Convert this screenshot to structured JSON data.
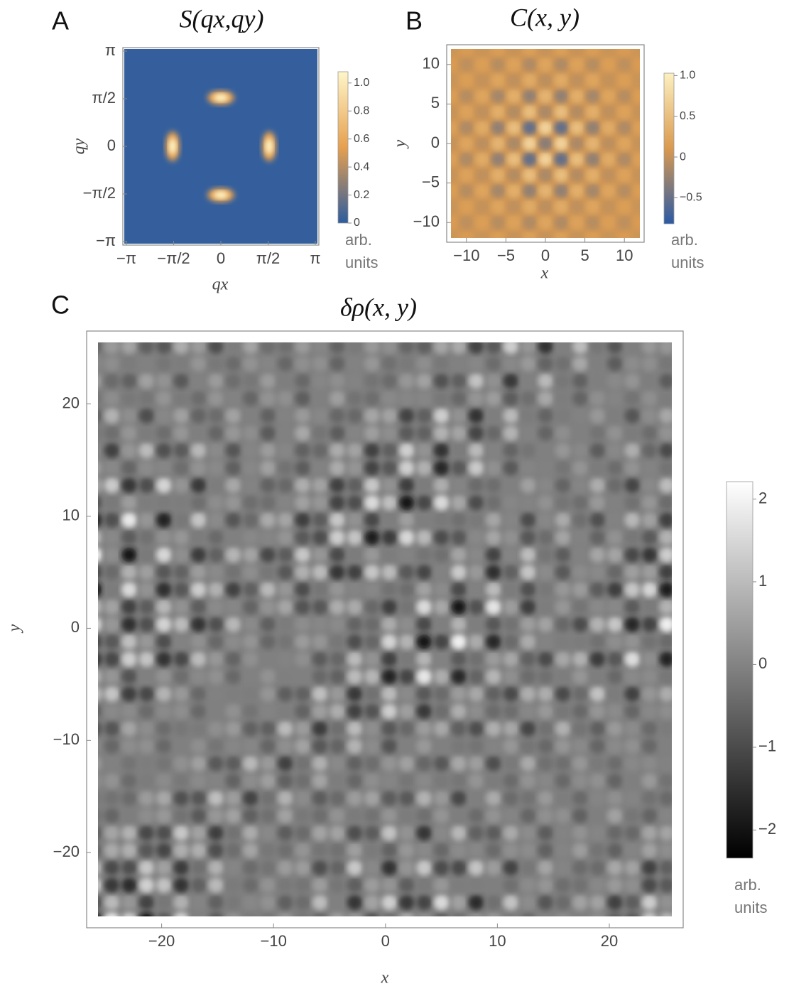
{
  "chart_data": [
    {
      "type": "heatmap",
      "panel": "A",
      "title": "S(qx,qy)",
      "xlabel": "qx",
      "ylabel": "qy",
      "xlim": [
        -3.14159,
        3.14159
      ],
      "ylim": [
        -3.14159,
        3.14159
      ],
      "xticks": [
        {
          "value": -3.14159,
          "label": "−π"
        },
        {
          "value": -1.5708,
          "label": "−π/2"
        },
        0,
        {
          "value": 1.5708,
          "label": "π/2"
        },
        {
          "value": 3.14159,
          "label": "π"
        }
      ],
      "yticks": [
        {
          "value": -3.14159,
          "label": "−π"
        },
        {
          "value": -1.5708,
          "label": "−π/2"
        },
        0,
        {
          "value": 1.5708,
          "label": "π/2"
        },
        {
          "value": 3.14159,
          "label": "π"
        }
      ],
      "colorbar": {
        "lim": [
          0,
          1.08
        ],
        "ticks": [
          0,
          0.2,
          0.4,
          0.6,
          0.8,
          {
            "value": 1,
            "label": "1.0"
          }
        ],
        "label": "arb. units",
        "colors": [
          "#2d5c9f",
          "#e6a04f",
          "#fff6c9"
        ]
      }
    },
    {
      "type": "heatmap",
      "panel": "B",
      "title": "C(x, y)",
      "xlabel": "x",
      "ylabel": "y",
      "xlim": [
        -12.5,
        12.5
      ],
      "ylim": [
        -12.5,
        12.5
      ],
      "xticks": [
        {
          "value": -10,
          "label": "−10"
        },
        {
          "value": -5,
          "label": "−5"
        },
        0,
        5,
        10
      ],
      "yticks": [
        {
          "value": -10,
          "label": "−10"
        },
        {
          "value": -5,
          "label": "−5"
        },
        0,
        5,
        10
      ],
      "colorbar": {
        "lim": [
          -0.82,
          1.03
        ],
        "ticks": [
          {
            "value": -0.5,
            "label": "−0.5"
          },
          0,
          0.5,
          {
            "value": 1,
            "label": "1.0"
          }
        ],
        "label": "arb. units",
        "colors": [
          "#2b5aa5",
          "#d99a50",
          "#fdf0c0"
        ]
      }
    },
    {
      "type": "heatmap",
      "panel": "C",
      "title": "δρ(x, y)",
      "xlabel": "x",
      "ylabel": "y",
      "xlim": [
        -26.7,
        26.6
      ],
      "ylim": [
        -26.7,
        26.5
      ],
      "xticks": [
        {
          "value": -20,
          "label": "−20"
        },
        {
          "value": -10,
          "label": "−10"
        },
        0,
        10,
        20
      ],
      "yticks": [
        {
          "value": -20,
          "label": "−20"
        },
        {
          "value": -10,
          "label": "−10"
        },
        0,
        10,
        20
      ],
      "colorbar": {
        "lim": [
          -2.34,
          2.21
        ],
        "ticks": [
          {
            "value": -2,
            "label": "−2"
          },
          {
            "value": -1,
            "label": "−1"
          },
          0,
          1,
          2
        ],
        "label": "arb. units",
        "colors": [
          "#000000",
          "#ffffff"
        ]
      }
    }
  ]
}
